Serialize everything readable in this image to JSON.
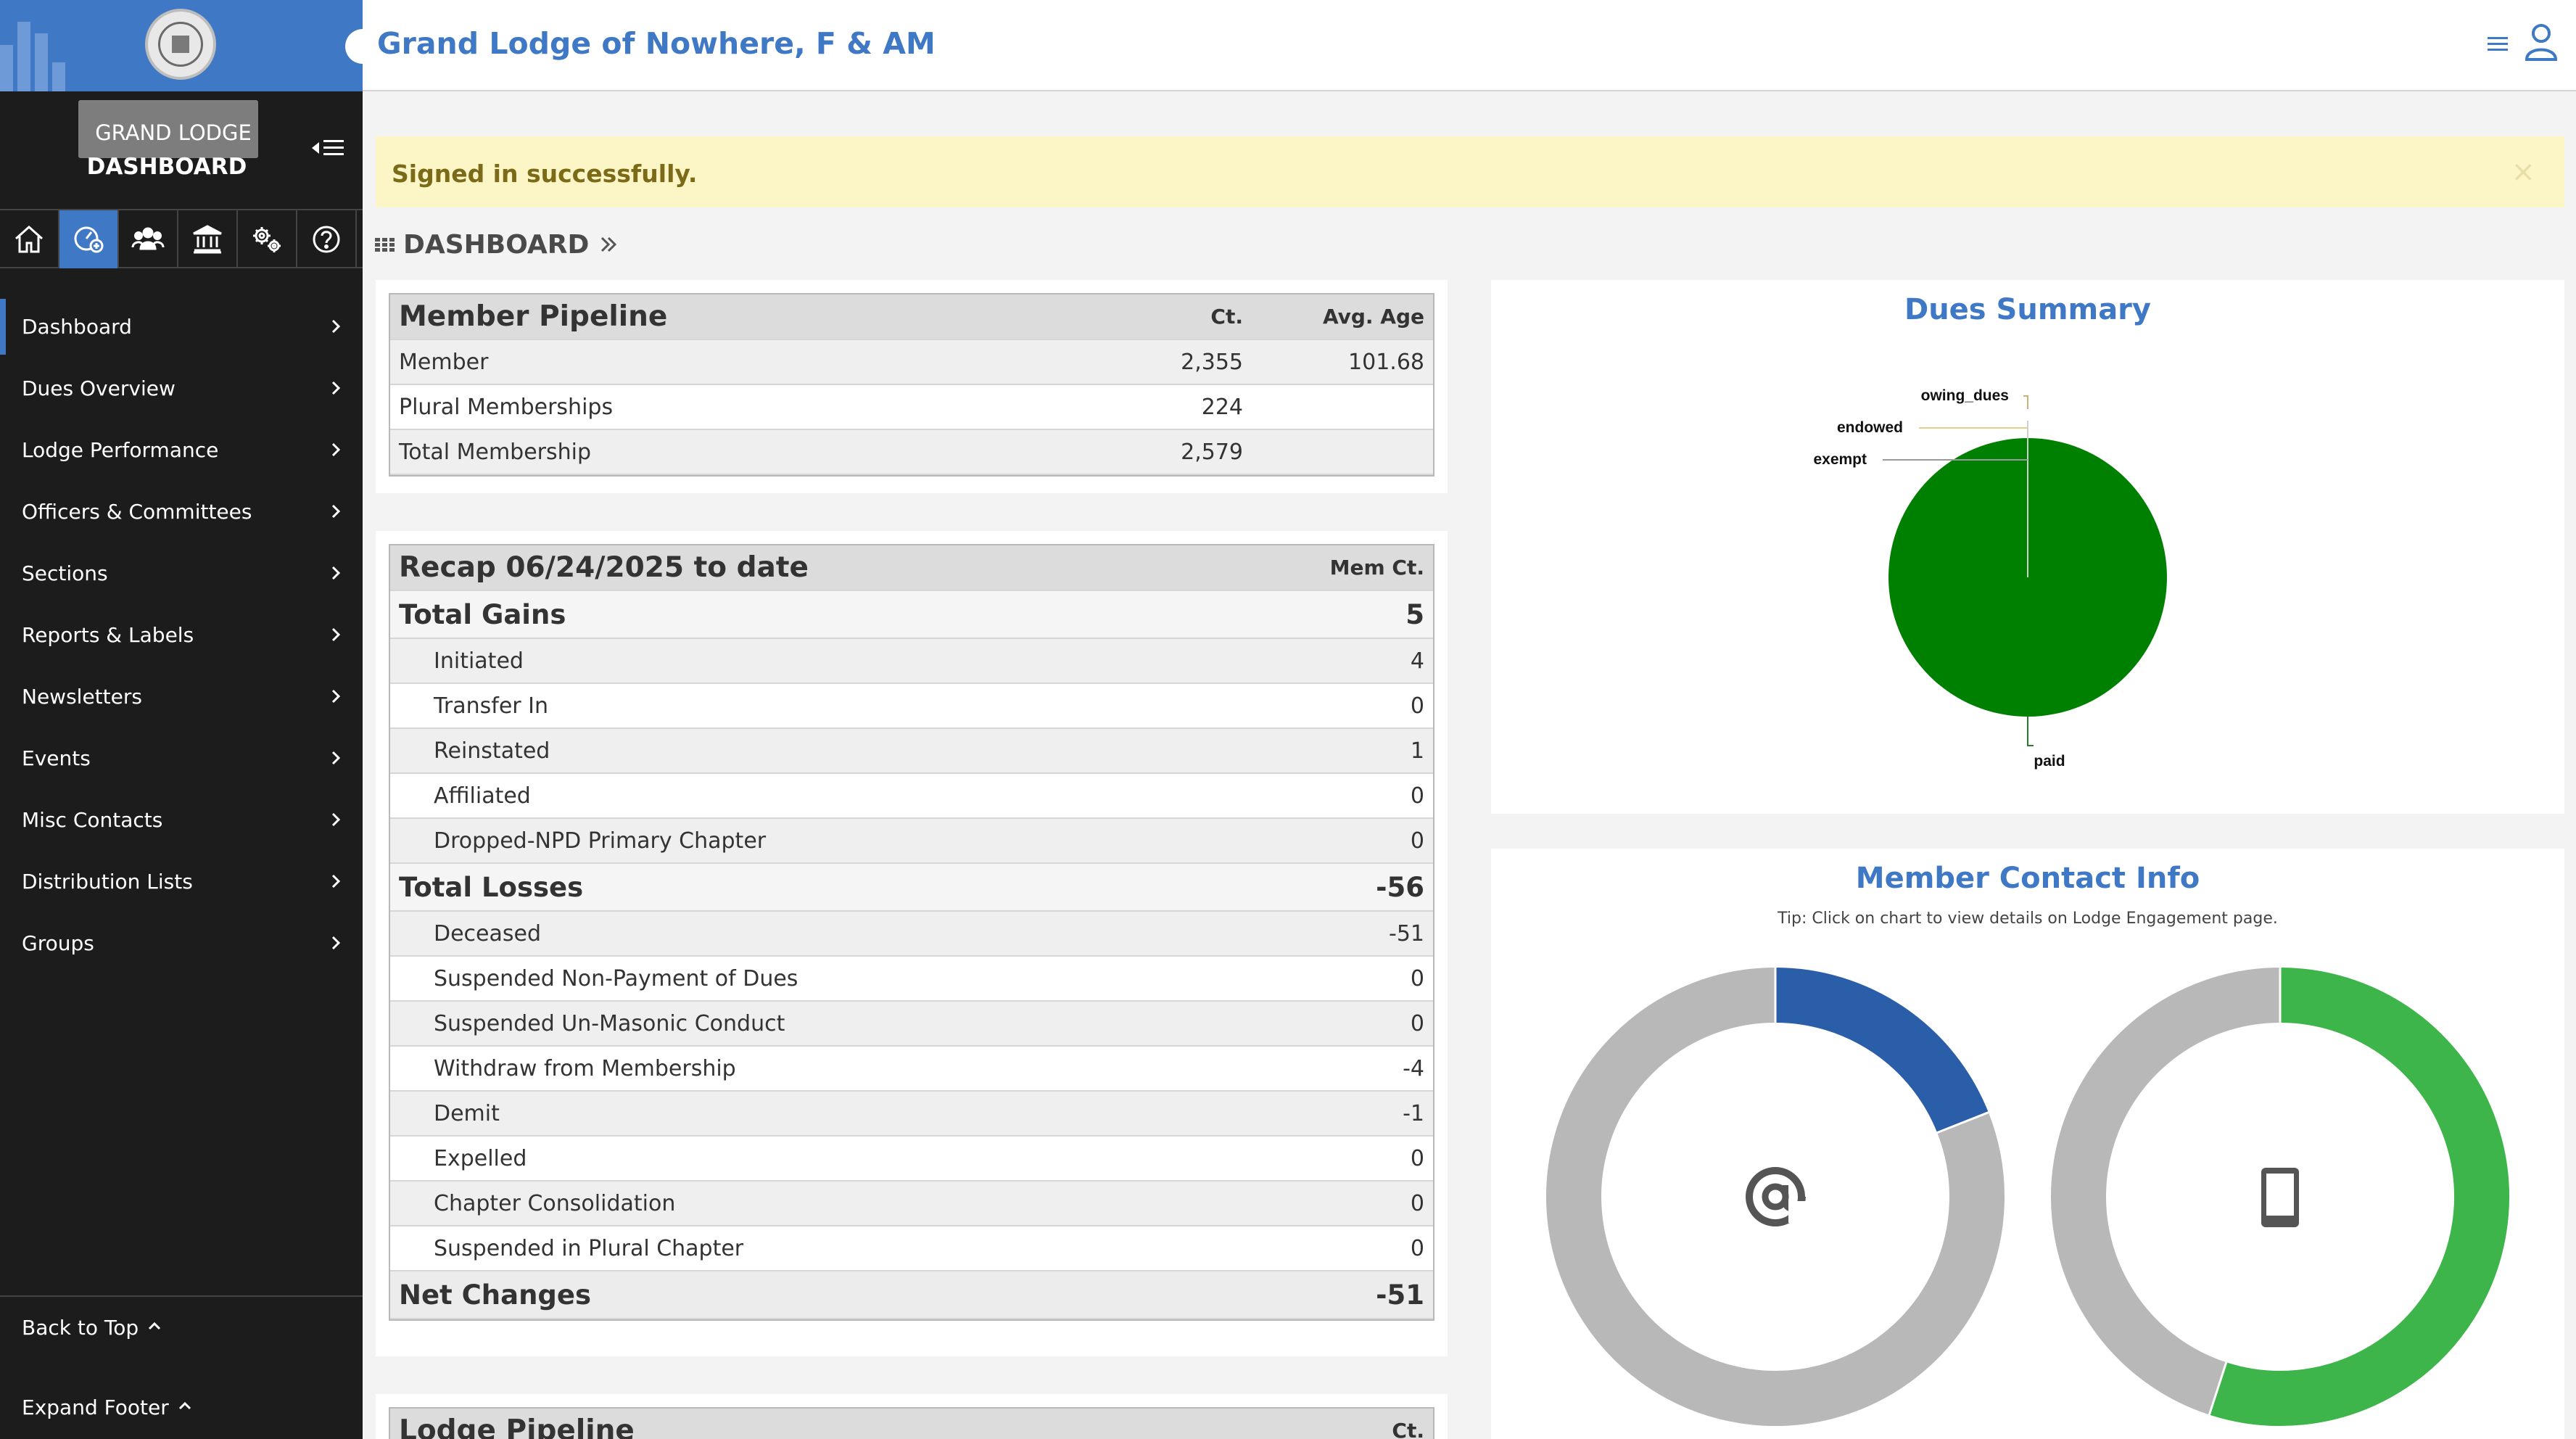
{
  "header": {
    "title": "Grand Lodge of Nowhere, F & AM"
  },
  "sidebar": {
    "brand_line1": "GRAND LODGE",
    "brand_line2": "DASHBOARD",
    "items": [
      {
        "label": "Dashboard"
      },
      {
        "label": "Dues Overview"
      },
      {
        "label": "Lodge Performance"
      },
      {
        "label": "Officers & Committees"
      },
      {
        "label": "Sections"
      },
      {
        "label": "Reports & Labels"
      },
      {
        "label": "Newsletters"
      },
      {
        "label": "Events"
      },
      {
        "label": "Misc Contacts"
      },
      {
        "label": "Distribution Lists"
      },
      {
        "label": "Groups"
      }
    ],
    "back_to_top": "Back to Top",
    "expand_footer": "Expand Footer",
    "accent": "#3f78c5"
  },
  "alert": {
    "text": "Signed in successfully.",
    "close": "×"
  },
  "page": {
    "title": "DASHBOARD"
  },
  "member_pipeline": {
    "title": "Member Pipeline",
    "col_ct": "Ct.",
    "col_age": "Avg. Age",
    "rows": [
      {
        "label": "Member",
        "ct": "2,355",
        "age": "101.68"
      },
      {
        "label": "Plural Memberships",
        "ct": "224",
        "age": ""
      },
      {
        "label": "Total Membership",
        "ct": "2,579",
        "age": ""
      }
    ]
  },
  "recap": {
    "title": "Recap 06/24/2025 to date",
    "col": "Mem Ct.",
    "gains_label": "Total Gains",
    "gains_value": "5",
    "gains": [
      {
        "label": "Initiated",
        "value": "4"
      },
      {
        "label": "Transfer In",
        "value": "0"
      },
      {
        "label": "Reinstated",
        "value": "1"
      },
      {
        "label": "Affiliated",
        "value": "0"
      },
      {
        "label": "Dropped-NPD Primary Chapter",
        "value": "0"
      }
    ],
    "losses_label": "Total Losses",
    "losses_value": "-56",
    "losses": [
      {
        "label": "Deceased",
        "value": "-51"
      },
      {
        "label": "Suspended Non-Payment of Dues",
        "value": "0"
      },
      {
        "label": "Suspended Un-Masonic Conduct",
        "value": "0"
      },
      {
        "label": "Withdraw from Membership",
        "value": "-4"
      },
      {
        "label": "Demit",
        "value": "-1"
      },
      {
        "label": "Expelled",
        "value": "0"
      },
      {
        "label": "Chapter Consolidation",
        "value": "0"
      },
      {
        "label": "Suspended in Plural Chapter",
        "value": "0"
      }
    ],
    "net_label": "Net Changes",
    "net_value": "-51"
  },
  "lodge_pipeline": {
    "title": "Lodge Pipeline",
    "col": "Ct."
  },
  "dues_summary": {
    "title": "Dues Summary",
    "chart_data": {
      "type": "pie",
      "slices": [
        {
          "label": "paid",
          "value": 100,
          "color": "#008000"
        },
        {
          "label": "owing_dues",
          "value": 0
        },
        {
          "label": "endowed",
          "value": 0
        },
        {
          "label": "exempt",
          "value": 0
        }
      ]
    }
  },
  "contact_info": {
    "title": "Member Contact Info",
    "tip": "Tip: Click on chart to view details on Lodge Engagement page.",
    "charts": [
      {
        "icon": "at-sign-icon",
        "type": "donut",
        "fraction": 0.19,
        "color": "#2b5ea8",
        "remainder_color": "#b8b8b8"
      },
      {
        "icon": "mobile-phone-icon",
        "type": "donut",
        "fraction": 0.55,
        "color": "#3db54a",
        "remainder_color": "#b8b8b8"
      }
    ]
  }
}
